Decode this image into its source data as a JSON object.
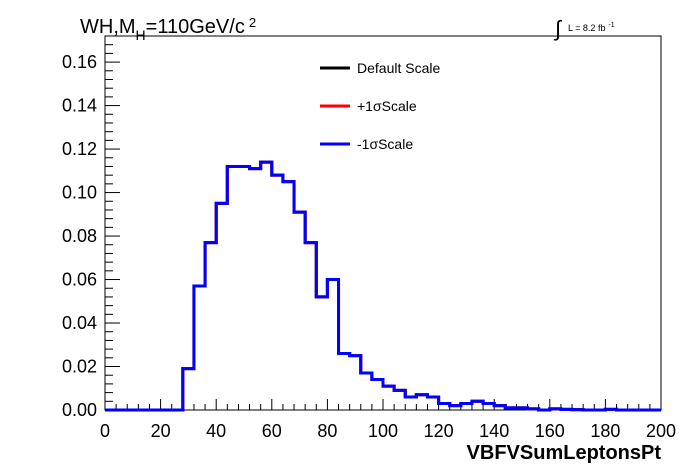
{
  "chart_data": {
    "type": "line",
    "title": {
      "main": "WH,M",
      "sub": "H",
      "rest": "=110GeV/c",
      "sup": "2"
    },
    "lumi": {
      "integral_symbol": "∫",
      "text": "L = 8.2 fb",
      "sup": "-1"
    },
    "xlabel": "VBFVSumLeptonsPt",
    "ylabel": "",
    "xlim": [
      0,
      200
    ],
    "ylim": [
      0,
      0.172
    ],
    "x_ticks": [
      0,
      20,
      40,
      60,
      80,
      100,
      120,
      140,
      160,
      180,
      200
    ],
    "x_tick_labels": [
      "0",
      "20",
      "40",
      "60",
      "80",
      "100",
      "120",
      "140",
      "160",
      "180",
      "200"
    ],
    "y_ticks": [
      0.0,
      0.02,
      0.04,
      0.06,
      0.08,
      0.1,
      0.12,
      0.14,
      0.16
    ],
    "y_tick_labels": [
      "0.00",
      "0.02",
      "0.04",
      "0.06",
      "0.08",
      "0.10",
      "0.12",
      "0.14",
      "0.16"
    ],
    "bin_edges": [
      0,
      4,
      8,
      12,
      16,
      20,
      24,
      28,
      32,
      36,
      40,
      44,
      48,
      52,
      56,
      60,
      64,
      68,
      72,
      76,
      80,
      84,
      88,
      92,
      96,
      100,
      104,
      108,
      112,
      116,
      120,
      124,
      128,
      132,
      136,
      140,
      144,
      148,
      152,
      156,
      160,
      164,
      168,
      172,
      176,
      180,
      184,
      188,
      192,
      196,
      200
    ],
    "series": [
      {
        "name": "Default Scale",
        "color": "#000000",
        "values": [
          0,
          0,
          0,
          0,
          0,
          0,
          0,
          0.019,
          0.057,
          0.077,
          0.095,
          0.112,
          0.112,
          0.111,
          0.114,
          0.108,
          0.105,
          0.091,
          0.077,
          0.052,
          0.06,
          0.026,
          0.025,
          0.017,
          0.014,
          0.011,
          0.009,
          0.006,
          0.007,
          0.006,
          0.003,
          0.002,
          0.003,
          0.004,
          0.003,
          0.002,
          0.001,
          0.001,
          0.0005,
          0,
          0.0005,
          0.0003,
          0.0002,
          0,
          0,
          0.0003,
          0,
          0,
          0,
          0
        ]
      },
      {
        "name": "+1σScale",
        "color": "#ff0000",
        "values": [
          0,
          0,
          0,
          0,
          0,
          0,
          0,
          0.019,
          0.057,
          0.077,
          0.095,
          0.112,
          0.112,
          0.111,
          0.114,
          0.108,
          0.105,
          0.091,
          0.077,
          0.052,
          0.06,
          0.026,
          0.025,
          0.017,
          0.014,
          0.011,
          0.009,
          0.006,
          0.007,
          0.006,
          0.003,
          0.002,
          0.003,
          0.004,
          0.003,
          0.002,
          0.001,
          0.001,
          0.0005,
          0,
          0.0005,
          0.0003,
          0.0002,
          0,
          0,
          0.0003,
          0,
          0,
          0,
          0
        ]
      },
      {
        "name": "-1σScale",
        "color": "#0000ff",
        "values": [
          0,
          0,
          0,
          0,
          0,
          0,
          0,
          0.019,
          0.057,
          0.077,
          0.095,
          0.112,
          0.112,
          0.111,
          0.114,
          0.108,
          0.105,
          0.091,
          0.077,
          0.052,
          0.06,
          0.026,
          0.025,
          0.017,
          0.014,
          0.011,
          0.009,
          0.006,
          0.007,
          0.006,
          0.003,
          0.002,
          0.003,
          0.004,
          0.003,
          0.002,
          0.001,
          0.001,
          0.0005,
          0,
          0.0005,
          0.0003,
          0.0002,
          0,
          0,
          0.0003,
          0,
          0,
          0,
          0
        ]
      }
    ],
    "legend_position": "top-center",
    "grid": false
  }
}
